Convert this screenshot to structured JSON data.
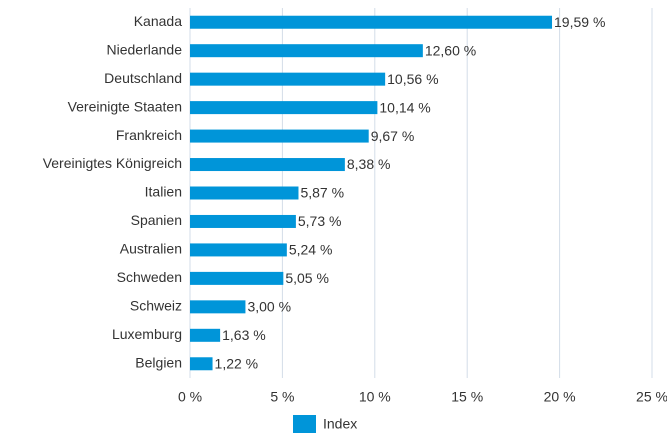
{
  "chart_data": {
    "type": "bar",
    "orientation": "horizontal",
    "categories": [
      "Kanada",
      "Niederlande",
      "Deutschland",
      "Vereinigte Staaten",
      "Frankreich",
      "Vereinigtes Königreich",
      "Italien",
      "Spanien",
      "Australien",
      "Schweden",
      "Schweiz",
      "Luxemburg",
      "Belgien"
    ],
    "series": [
      {
        "name": "Index",
        "color": "#0095d9",
        "values": [
          19.59,
          12.6,
          10.56,
          10.14,
          9.67,
          8.38,
          5.87,
          5.73,
          5.24,
          5.05,
          3.0,
          1.63,
          1.22
        ],
        "value_labels": [
          "19,59 %",
          "12,60 %",
          "10,56 %",
          "10,14 %",
          "9,67 %",
          "8,38 %",
          "5,87 %",
          "5,73 %",
          "5,24 %",
          "5,05 %",
          "3,00 %",
          "1,63 %",
          "1,22 %"
        ]
      }
    ],
    "xlim": [
      0,
      25
    ],
    "xticks": [
      {
        "value": 0,
        "label": "0 %"
      },
      {
        "value": 5,
        "label": "5 %"
      },
      {
        "value": 10,
        "label": "10 %"
      },
      {
        "value": 15,
        "label": "15 %"
      },
      {
        "value": 20,
        "label": "20 %"
      },
      {
        "value": 25,
        "label": "25 %"
      }
    ],
    "grid": true,
    "legend": "bottom"
  }
}
